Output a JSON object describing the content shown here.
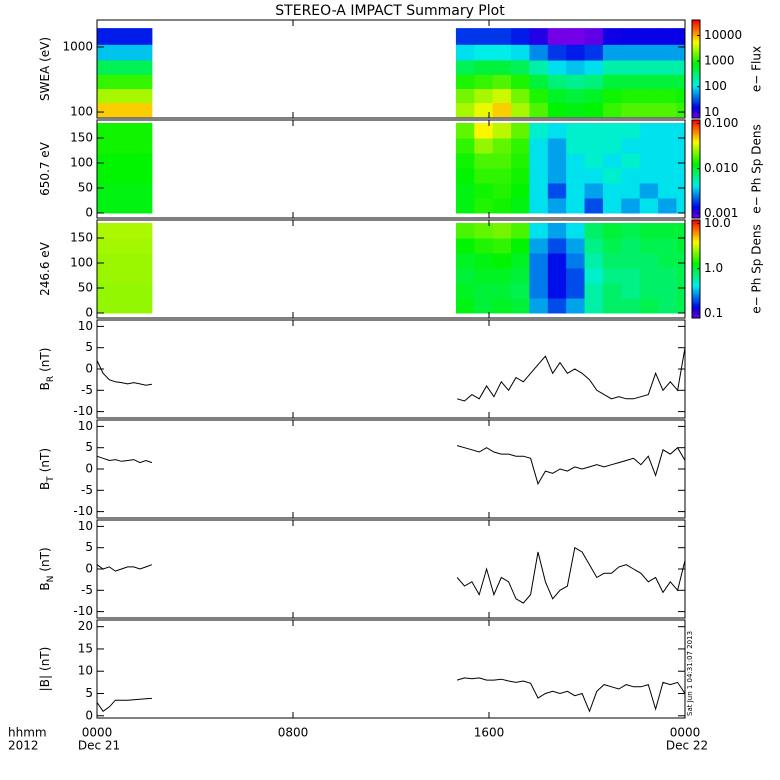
{
  "title": "STEREO-A IMPACT Summary Plot",
  "x_axis": {
    "label": "hhmm",
    "year": "2012",
    "xlim": [
      0,
      24
    ],
    "xticks": [
      {
        "value": 0,
        "label": "0000"
      },
      {
        "value": 8,
        "label": "0800"
      },
      {
        "value": 16,
        "label": "1600"
      },
      {
        "value": 24,
        "label": "0000"
      }
    ],
    "date_labels": [
      {
        "value": 0,
        "label": "Dec 21"
      },
      {
        "value": 24,
        "label": "Dec 22"
      }
    ]
  },
  "timestamp": "Sat Jun 1 04:31:07 2013",
  "chart_data": [
    {
      "type": "heatmap",
      "ylabel": "SWEA (eV)",
      "ylog": true,
      "ylim": [
        81,
        2600
      ],
      "yticks": [
        100,
        1000
      ],
      "x_edges": [
        0,
        2.24,
        14.65,
        15.4,
        16.15,
        16.9,
        17.65,
        18.4,
        19.15,
        19.9,
        20.65,
        21.4,
        22.15,
        22.9,
        23.65,
        24
      ],
      "y_edges": [
        85,
        140,
        230,
        380,
        630,
        1100,
        1950
      ],
      "z": [
        [
          8000,
          null,
          3000,
          5000,
          8000,
          3000,
          1500,
          800,
          700,
          800,
          1200,
          1500,
          1500,
          1500,
          1200
        ],
        [
          3000,
          null,
          2000,
          3000,
          4000,
          2000,
          1000,
          600,
          500,
          600,
          900,
          1000,
          1000,
          1000,
          900
        ],
        [
          1200,
          null,
          1000,
          1200,
          1500,
          1000,
          500,
          300,
          250,
          300,
          500,
          500,
          500,
          500,
          500
        ],
        [
          400,
          null,
          400,
          500,
          500,
          400,
          200,
          100,
          80,
          100,
          200,
          200,
          200,
          200,
          200
        ],
        [
          80,
          null,
          100,
          120,
          120,
          100,
          50,
          25,
          20,
          25,
          60,
          60,
          60,
          60,
          60
        ],
        [
          20,
          null,
          25,
          25,
          25,
          20,
          12,
          6,
          6,
          7,
          14,
          15,
          15,
          15,
          15
        ]
      ],
      "colormap": "rainbow",
      "clog": true,
      "clim": [
        6,
        40000
      ],
      "cticks": [
        10,
        100,
        1000,
        10000
      ],
      "clabel": "e− Flux"
    },
    {
      "type": "heatmap",
      "ylabel": "650.7 eV",
      "ylog": false,
      "ylim": [
        -10,
        186
      ],
      "yticks": [
        0,
        50,
        100,
        150
      ],
      "x_edges": [
        0,
        2.24,
        14.65,
        15.4,
        16.15,
        16.9,
        17.65,
        18.4,
        19.15,
        19.9,
        20.65,
        21.4,
        22.15,
        22.9,
        23.65,
        24
      ],
      "y_edges": [
        0,
        30,
        60,
        90,
        120,
        150,
        180
      ],
      "z": [
        [
          0.012,
          null,
          0.012,
          0.015,
          0.014,
          0.012,
          0.004,
          0.003,
          0.004,
          0.002,
          0.004,
          0.003,
          0.004,
          0.003,
          0.004
        ],
        [
          0.012,
          null,
          0.012,
          0.014,
          0.015,
          0.013,
          0.004,
          0.002,
          0.004,
          0.003,
          0.004,
          0.004,
          0.003,
          0.004,
          0.004
        ],
        [
          0.013,
          null,
          0.013,
          0.016,
          0.016,
          0.014,
          0.004,
          0.003,
          0.004,
          0.004,
          0.005,
          0.004,
          0.004,
          0.004,
          0.004
        ],
        [
          0.013,
          null,
          0.014,
          0.018,
          0.018,
          0.015,
          0.004,
          0.003,
          0.004,
          0.005,
          0.004,
          0.005,
          0.004,
          0.004,
          0.004
        ],
        [
          0.014,
          null,
          0.016,
          0.025,
          0.02,
          0.016,
          0.004,
          0.003,
          0.005,
          0.005,
          0.005,
          0.004,
          0.004,
          0.004,
          0.004
        ],
        [
          0.014,
          null,
          0.02,
          0.04,
          0.03,
          0.02,
          0.005,
          0.004,
          0.005,
          0.005,
          0.005,
          0.005,
          0.004,
          0.004,
          0.004
        ]
      ],
      "colormap": "rainbow",
      "clog": true,
      "clim": [
        0.0008,
        0.12
      ],
      "cticks": [
        0.001,
        {
          "value": 0.01,
          "label": "0.010"
        },
        {
          "value": 0.1,
          "label": "0.100"
        }
      ],
      "clabel": "e− Ph Sp Dens"
    },
    {
      "type": "heatmap",
      "ylabel": "246.6 eV",
      "ylog": false,
      "ylim": [
        -10,
        186
      ],
      "yticks": [
        0,
        50,
        100,
        150
      ],
      "x_edges": [
        0,
        2.24,
        14.65,
        15.4,
        16.15,
        16.9,
        17.65,
        18.4,
        19.15,
        19.9,
        20.65,
        21.4,
        22.15,
        22.9,
        23.65,
        24
      ],
      "y_edges": [
        0,
        30,
        60,
        90,
        120,
        150,
        180
      ],
      "z": [
        [
          2.5,
          null,
          1.2,
          1.0,
          1.1,
          1.0,
          0.3,
          0.2,
          0.3,
          0.6,
          0.8,
          0.8,
          0.9,
          0.8,
          0.9
        ],
        [
          2.5,
          null,
          1.1,
          1.0,
          1.0,
          0.9,
          0.25,
          0.15,
          0.2,
          0.6,
          0.8,
          0.7,
          0.8,
          0.8,
          0.9
        ],
        [
          2.6,
          null,
          1.0,
          1.1,
          1.1,
          1.0,
          0.25,
          0.15,
          0.2,
          0.5,
          0.7,
          0.7,
          0.8,
          0.8,
          0.9
        ],
        [
          2.6,
          null,
          1.1,
          1.2,
          1.3,
          1.1,
          0.25,
          0.15,
          0.25,
          0.6,
          0.8,
          0.8,
          0.8,
          0.9,
          0.9
        ],
        [
          2.7,
          null,
          1.3,
          1.5,
          1.6,
          1.3,
          0.3,
          0.2,
          0.3,
          0.7,
          0.9,
          0.8,
          0.9,
          0.9,
          1.0
        ],
        [
          2.8,
          null,
          1.8,
          2.0,
          2.2,
          1.8,
          0.4,
          0.3,
          0.4,
          0.8,
          1.0,
          0.9,
          1.0,
          1.0,
          1.0
        ]
      ],
      "colormap": "rainbow",
      "clog": true,
      "clim": [
        0.08,
        12
      ],
      "cticks": [
        0.1,
        {
          "value": 1,
          "label": "1.0"
        },
        {
          "value": 10,
          "label": "10.0"
        }
      ],
      "clabel": "e− Ph Sp Dens"
    },
    {
      "type": "line",
      "ylabel": "B",
      "ylabel_sub": "R",
      "ylabel_unit": "(nT)",
      "ylim": [
        -11.5,
        11.5
      ],
      "yticks": [
        -10,
        -5,
        0,
        5,
        10
      ],
      "color": "#000000",
      "x": [
        0,
        0.25,
        0.5,
        0.75,
        1,
        1.25,
        1.5,
        1.75,
        2,
        2.24,
        8,
        14.7,
        15.0,
        15.3,
        15.6,
        15.9,
        16.2,
        16.5,
        16.8,
        17.1,
        17.4,
        17.7,
        18.0,
        18.3,
        18.6,
        18.9,
        19.2,
        19.5,
        19.8,
        20.1,
        20.4,
        20.7,
        21.0,
        21.3,
        21.6,
        21.9,
        22.2,
        22.5,
        22.8,
        23.1,
        23.4,
        23.7,
        24.0
      ],
      "values": [
        2,
        -1,
        -2.5,
        -3,
        -3.2,
        -3.5,
        -3.2,
        -3.5,
        -3.8,
        -3.6,
        null,
        -7,
        -7.5,
        -6,
        -7,
        -4,
        -6.5,
        -3,
        -5,
        -2,
        -3,
        -1,
        1,
        3,
        -1,
        1.5,
        -1,
        0,
        -1,
        -2.5,
        -5,
        -6,
        -7,
        -6.5,
        -7,
        -7,
        -6.5,
        -6,
        -1,
        -5,
        -3,
        -5,
        5
      ]
    },
    {
      "type": "line",
      "ylabel": "B",
      "ylabel_sub": "T",
      "ylabel_unit": "(nT)",
      "ylim": [
        -11.5,
        11.5
      ],
      "yticks": [
        -10,
        -5,
        0,
        5,
        10
      ],
      "color": "#000000",
      "x": [
        0,
        0.25,
        0.5,
        0.75,
        1,
        1.25,
        1.5,
        1.75,
        2,
        2.24,
        8,
        14.7,
        15.0,
        15.3,
        15.6,
        15.9,
        16.2,
        16.5,
        16.8,
        17.1,
        17.4,
        17.7,
        18.0,
        18.3,
        18.6,
        18.9,
        19.2,
        19.5,
        19.8,
        20.1,
        20.4,
        20.7,
        21.0,
        21.3,
        21.6,
        21.9,
        22.2,
        22.5,
        22.8,
        23.1,
        23.4,
        23.7,
        24.0
      ],
      "values": [
        3,
        2.5,
        2,
        2.2,
        1.8,
        2,
        2.2,
        1.5,
        2,
        1.5,
        null,
        5.5,
        5,
        4.5,
        4,
        5,
        4,
        3.5,
        3.5,
        3,
        3,
        2.5,
        -3.5,
        -0.5,
        -1,
        0,
        -0.5,
        0.5,
        0,
        0.5,
        1,
        0.5,
        1,
        1.5,
        2,
        2.5,
        1,
        3,
        -1.5,
        4.5,
        3.5,
        5,
        2
      ]
    },
    {
      "type": "line",
      "ylabel": "B",
      "ylabel_sub": "N",
      "ylabel_unit": "(nT)",
      "ylim": [
        -11.5,
        11.5
      ],
      "yticks": [
        -10,
        -5,
        0,
        5,
        10
      ],
      "color": "#000000",
      "x": [
        0,
        0.25,
        0.5,
        0.75,
        1,
        1.25,
        1.5,
        1.75,
        2,
        2.24,
        8,
        14.7,
        15.0,
        15.3,
        15.6,
        15.9,
        16.2,
        16.5,
        16.8,
        17.1,
        17.4,
        17.7,
        18.0,
        18.3,
        18.6,
        18.9,
        19.2,
        19.5,
        19.8,
        20.1,
        20.4,
        20.7,
        21.0,
        21.3,
        21.6,
        21.9,
        22.2,
        22.5,
        22.8,
        23.1,
        23.4,
        23.7,
        24.0
      ],
      "values": [
        1,
        0,
        0.5,
        -0.5,
        0,
        0.5,
        0.5,
        0,
        0.5,
        1,
        null,
        -2,
        -4,
        -3,
        -6,
        0,
        -6,
        -2,
        -3,
        -7,
        -8,
        -6,
        4,
        -3,
        -7,
        -5,
        -4,
        5,
        4,
        1,
        -2,
        -1,
        -1,
        0.5,
        1,
        0,
        -1,
        -3,
        -2,
        -5.5,
        -3,
        -5,
        2
      ]
    },
    {
      "type": "line",
      "ylabel": "|B|",
      "ylabel_unit": "(nT)",
      "ylim": [
        -0.5,
        21.5
      ],
      "yticks": [
        0,
        5,
        10,
        15,
        20
      ],
      "color": "#000000",
      "x": [
        0,
        0.25,
        0.5,
        0.75,
        1,
        1.25,
        1.5,
        1.75,
        2,
        2.24,
        8,
        14.7,
        15.0,
        15.3,
        15.6,
        15.9,
        16.2,
        16.5,
        16.8,
        17.1,
        17.4,
        17.7,
        18.0,
        18.3,
        18.6,
        18.9,
        19.2,
        19.5,
        19.8,
        20.1,
        20.4,
        20.7,
        21.0,
        21.3,
        21.6,
        21.9,
        22.2,
        22.5,
        22.8,
        23.1,
        23.4,
        23.7,
        24.0
      ],
      "values": [
        3,
        1,
        2,
        3.5,
        3.5,
        3.5,
        3.6,
        3.7,
        3.8,
        3.9,
        null,
        8,
        8.5,
        8.3,
        8.5,
        8,
        8,
        8.2,
        7.8,
        7.5,
        7.8,
        7.3,
        4,
        5,
        5.5,
        5,
        5.5,
        4.5,
        5,
        1,
        5.5,
        7,
        6.5,
        6,
        7,
        6.5,
        6.5,
        7,
        1.5,
        7.5,
        7,
        7.5,
        5
      ]
    }
  ]
}
